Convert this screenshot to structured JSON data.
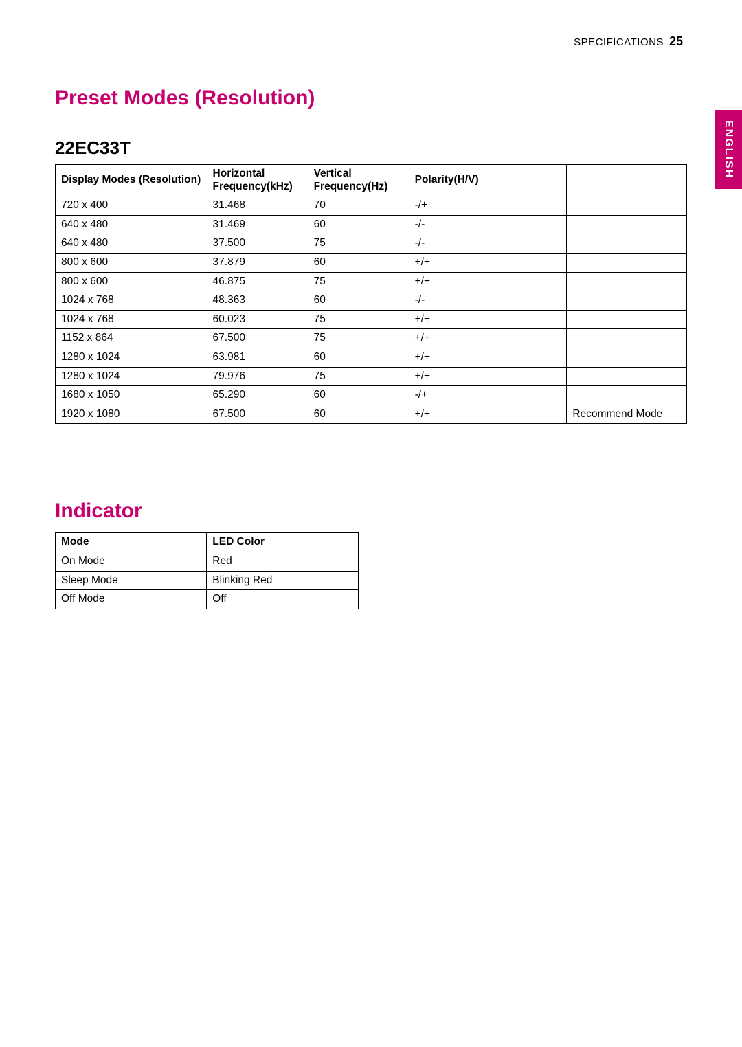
{
  "header": {
    "section_label": "SPECIFICATIONS",
    "page_number": "25"
  },
  "language_tab": "ENGLISH",
  "section1": {
    "title": "Preset Modes (Resolution)",
    "model": "22EC33T",
    "table": {
      "columns": [
        "Display Modes (Resolution)",
        "Horizontal Frequency(kHz)",
        "Vertical Frequency(Hz)",
        "Polarity(H/V)",
        ""
      ],
      "rows": [
        [
          "720 x 400",
          "31.468",
          "70",
          "-/+",
          ""
        ],
        [
          "640 x 480",
          "31.469",
          "60",
          "-/-",
          ""
        ],
        [
          "640 x 480",
          "37.500",
          "75",
          "-/-",
          ""
        ],
        [
          "800 x 600",
          "37.879",
          "60",
          "+/+",
          ""
        ],
        [
          "800 x 600",
          "46.875",
          "75",
          "+/+",
          ""
        ],
        [
          "1024 x 768",
          "48.363",
          "60",
          "-/-",
          ""
        ],
        [
          "1024 x 768",
          "60.023",
          "75",
          "+/+",
          ""
        ],
        [
          "1152 x 864",
          "67.500",
          "75",
          "+/+",
          ""
        ],
        [
          "1280 x 1024",
          "63.981",
          "60",
          "+/+",
          ""
        ],
        [
          "1280 x 1024",
          "79.976",
          "75",
          "+/+",
          ""
        ],
        [
          "1680 x 1050",
          "65.290",
          "60",
          "-/+",
          ""
        ],
        [
          "1920 x 1080",
          "67.500",
          "60",
          "+/+",
          "Recommend Mode"
        ]
      ]
    }
  },
  "section2": {
    "title": "Indicator",
    "table": {
      "columns": [
        "Mode",
        "LED Color"
      ],
      "rows": [
        [
          "On Mode",
          "Red"
        ],
        [
          "Sleep Mode",
          "Blinking Red"
        ],
        [
          "Off Mode",
          "Off"
        ]
      ]
    }
  },
  "style": {
    "accent_color": "#c7006e",
    "text_color": "#000000",
    "background_color": "#ffffff",
    "border_color": "#000000",
    "title_fontsize_pt": 22,
    "model_fontsize_pt": 19,
    "body_fontsize_pt": 11.5
  }
}
